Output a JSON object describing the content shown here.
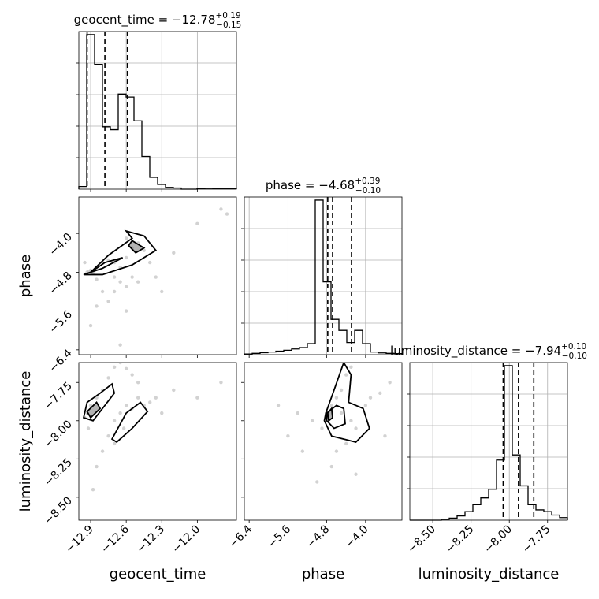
{
  "chart_data": {
    "type": "corner",
    "grid": true,
    "parameters": [
      {
        "name": "geocent_time",
        "axis_label": "geocent_time",
        "range": [
          -13.0,
          -11.67
        ],
        "ticks": [
          -12.9,
          -12.6,
          -12.3,
          -12.0
        ],
        "tick_labels": [
          "−12.9",
          "−12.6",
          "−12.3",
          "−12.0"
        ],
        "title_main": "geocent_time = −12.78",
        "title_plus": "+0.19",
        "title_minus": "−0.15",
        "median": -12.78,
        "quantiles": [
          -12.93,
          -12.78,
          -12.59
        ],
        "histogram": [
          0.9,
          52,
          42,
          21,
          20,
          32,
          31,
          23,
          11,
          4,
          1.6,
          0.6,
          0.4,
          0,
          0,
          0.2,
          0.3,
          0.2,
          0.2,
          0.2
        ]
      },
      {
        "name": "phase",
        "axis_label": "phase",
        "range": [
          -6.5,
          -3.25
        ],
        "ticks": [
          -6.4,
          -5.6,
          -4.8,
          -4.0
        ],
        "tick_labels": [
          "−6.4",
          "−5.6",
          "−4.8",
          "−4.0"
        ],
        "title_main": "phase = −4.68",
        "title_plus": "+0.39",
        "title_minus": "−0.10",
        "median": -4.68,
        "quantiles": [
          -4.78,
          -4.68,
          -4.29
        ],
        "histogram": [
          0.3,
          0.6,
          0.9,
          1.2,
          1.6,
          2.0,
          2.6,
          3.2,
          5,
          70,
          33,
          16,
          11,
          5.5,
          11,
          5,
          1.2,
          0.8,
          0.6,
          0.5
        ]
      },
      {
        "name": "luminosity_distance",
        "axis_label": "luminosity_distance",
        "range": [
          -8.65,
          -7.62
        ],
        "ticks": [
          -8.5,
          -8.25,
          -8.0,
          -7.75
        ],
        "tick_labels": [
          "−8.50",
          "−8.25",
          "−8.00",
          "−7.75"
        ],
        "title_main": "luminosity_distance = −7.94",
        "title_plus": "+0.10",
        "title_minus": "−0.10",
        "median": -7.94,
        "quantiles": [
          -8.04,
          -7.94,
          -7.84
        ],
        "histogram": [
          0,
          0,
          0,
          0,
          0.5,
          1.2,
          2.5,
          5,
          9,
          13,
          18,
          35,
          90,
          38,
          20,
          9,
          6,
          5,
          3,
          1.5
        ]
      }
    ],
    "panels_2d": [
      {
        "x": "geocent_time",
        "y": "phase",
        "points": [
          [
            -12.93,
            -4.8
          ],
          [
            -12.92,
            -4.78
          ],
          [
            -12.88,
            -4.82
          ],
          [
            -12.9,
            -4.76
          ],
          [
            -12.85,
            -4.7
          ],
          [
            -12.8,
            -4.6
          ],
          [
            -12.75,
            -4.55
          ],
          [
            -12.7,
            -4.6
          ],
          [
            -12.65,
            -4.7
          ],
          [
            -12.6,
            -4.5
          ],
          [
            -12.55,
            -4.3
          ],
          [
            -12.6,
            -4.1
          ],
          [
            -12.5,
            -4.2
          ],
          [
            -12.45,
            -4.35
          ],
          [
            -12.7,
            -4.9
          ],
          [
            -12.65,
            -5.0
          ],
          [
            -12.6,
            -5.1
          ],
          [
            -12.55,
            -4.9
          ],
          [
            -12.5,
            -5.0
          ],
          [
            -12.4,
            -4.6
          ],
          [
            -12.8,
            -5.2
          ],
          [
            -12.85,
            -5.5
          ],
          [
            -12.9,
            -5.9
          ],
          [
            -12.75,
            -5.4
          ],
          [
            -12.7,
            -5.2
          ],
          [
            -12.35,
            -4.9
          ],
          [
            -12.2,
            -4.4
          ],
          [
            -12.0,
            -3.8
          ],
          [
            -11.8,
            -3.5
          ],
          [
            -11.75,
            -3.6
          ],
          [
            -12.6,
            -5.6
          ],
          [
            -12.65,
            -6.3
          ],
          [
            -12.3,
            -5.2
          ],
          [
            -12.95,
            -4.6
          ],
          [
            -12.85,
            -4.95
          ]
        ],
        "contours": [
          [
            [
              -12.9,
              -4.8
            ],
            [
              -12.75,
              -4.45
            ],
            [
              -12.55,
              -4.1
            ],
            [
              -12.6,
              -3.95
            ],
            [
              -12.45,
              -4.05
            ],
            [
              -12.35,
              -4.35
            ],
            [
              -12.55,
              -4.65
            ],
            [
              -12.8,
              -4.85
            ],
            [
              -12.96,
              -4.85
            ],
            [
              -12.9,
              -4.8
            ]
          ],
          [
            [
              -12.9,
              -4.8
            ],
            [
              -12.78,
              -4.6
            ],
            [
              -12.63,
              -4.5
            ],
            [
              -12.8,
              -4.72
            ],
            [
              -12.9,
              -4.8
            ]
          ],
          [
            [
              -12.55,
              -4.15
            ],
            [
              -12.45,
              -4.3
            ],
            [
              -12.52,
              -4.4
            ],
            [
              -12.58,
              -4.25
            ],
            [
              -12.55,
              -4.15
            ]
          ]
        ]
      },
      {
        "x": "geocent_time",
        "y": "luminosity_distance",
        "points": [
          [
            -12.93,
            -7.95
          ],
          [
            -12.9,
            -7.9
          ],
          [
            -12.85,
            -7.85
          ],
          [
            -12.8,
            -7.8
          ],
          [
            -12.75,
            -7.72
          ],
          [
            -12.7,
            -7.65
          ],
          [
            -12.65,
            -7.62
          ],
          [
            -12.6,
            -7.66
          ],
          [
            -12.55,
            -7.7
          ],
          [
            -12.5,
            -7.75
          ],
          [
            -12.7,
            -8.0
          ],
          [
            -12.65,
            -7.95
          ],
          [
            -12.6,
            -7.9
          ],
          [
            -12.55,
            -7.92
          ],
          [
            -12.5,
            -7.85
          ],
          [
            -12.45,
            -7.9
          ],
          [
            -12.75,
            -8.1
          ],
          [
            -12.8,
            -8.2
          ],
          [
            -12.85,
            -8.3
          ],
          [
            -12.92,
            -8.05
          ],
          [
            -12.35,
            -7.85
          ],
          [
            -12.2,
            -7.8
          ],
          [
            -12.0,
            -7.85
          ],
          [
            -11.8,
            -7.75
          ],
          [
            -12.3,
            -7.95
          ],
          [
            -12.88,
            -8.45
          ],
          [
            -12.7,
            -8.15
          ],
          [
            -12.62,
            -8.05
          ],
          [
            -12.95,
            -7.98
          ],
          [
            -12.4,
            -7.88
          ]
        ],
        "contours": [
          [
            [
              -12.96,
              -7.98
            ],
            [
              -12.93,
              -7.88
            ],
            [
              -12.82,
              -7.82
            ],
            [
              -12.72,
              -7.76
            ],
            [
              -12.7,
              -7.82
            ],
            [
              -12.78,
              -7.9
            ],
            [
              -12.88,
              -8.0
            ],
            [
              -12.96,
              -7.98
            ]
          ],
          [
            [
              -12.72,
              -8.12
            ],
            [
              -12.6,
              -7.95
            ],
            [
              -12.48,
              -7.88
            ],
            [
              -12.42,
              -7.94
            ],
            [
              -12.55,
              -8.05
            ],
            [
              -12.68,
              -8.14
            ],
            [
              -12.72,
              -8.12
            ]
          ],
          [
            [
              -12.93,
              -7.94
            ],
            [
              -12.85,
              -7.88
            ],
            [
              -12.82,
              -7.92
            ],
            [
              -12.9,
              -7.98
            ],
            [
              -12.93,
              -7.94
            ]
          ]
        ]
      },
      {
        "x": "phase",
        "y": "luminosity_distance",
        "points": [
          [
            -4.8,
            -7.95
          ],
          [
            -4.7,
            -7.9
          ],
          [
            -4.6,
            -7.85
          ],
          [
            -4.5,
            -7.8
          ],
          [
            -4.4,
            -7.7
          ],
          [
            -4.3,
            -7.65
          ],
          [
            -4.5,
            -7.95
          ],
          [
            -4.3,
            -8.0
          ],
          [
            -4.2,
            -8.05
          ],
          [
            -4.0,
            -7.9
          ],
          [
            -3.9,
            -7.85
          ],
          [
            -3.7,
            -7.82
          ],
          [
            -4.9,
            -8.05
          ],
          [
            -5.1,
            -8.0
          ],
          [
            -5.4,
            -7.95
          ],
          [
            -5.6,
            -8.1
          ],
          [
            -5.8,
            -7.9
          ],
          [
            -4.6,
            -8.2
          ],
          [
            -4.4,
            -8.15
          ],
          [
            -4.7,
            -8.3
          ],
          [
            -5.0,
            -8.4
          ],
          [
            -4.2,
            -8.35
          ],
          [
            -3.6,
            -8.1
          ],
          [
            -3.5,
            -7.75
          ],
          [
            -5.3,
            -8.2
          ]
        ],
        "contours": [
          [
            [
              -4.82,
              -7.95
            ],
            [
              -4.65,
              -7.8
            ],
            [
              -4.45,
              -7.62
            ],
            [
              -4.3,
              -7.7
            ],
            [
              -4.35,
              -7.88
            ],
            [
              -4.05,
              -7.92
            ],
            [
              -3.92,
              -8.05
            ],
            [
              -4.2,
              -8.14
            ],
            [
              -4.7,
              -8.1
            ],
            [
              -4.85,
              -8.0
            ],
            [
              -4.82,
              -7.95
            ]
          ],
          [
            [
              -4.8,
              -7.95
            ],
            [
              -4.6,
              -7.9
            ],
            [
              -4.45,
              -7.92
            ],
            [
              -4.42,
              -8.02
            ],
            [
              -4.65,
              -8.05
            ],
            [
              -4.8,
              -8.0
            ],
            [
              -4.8,
              -7.95
            ]
          ],
          [
            [
              -4.78,
              -7.95
            ],
            [
              -4.7,
              -7.92
            ],
            [
              -4.68,
              -7.98
            ],
            [
              -4.76,
              -8.0
            ],
            [
              -4.78,
              -7.95
            ]
          ]
        ]
      }
    ],
    "colors": {
      "hist": "#000000",
      "contour": "#000000",
      "points": "#bfbfbf",
      "grid": "#b0b0b0",
      "axes": "#000000"
    }
  }
}
